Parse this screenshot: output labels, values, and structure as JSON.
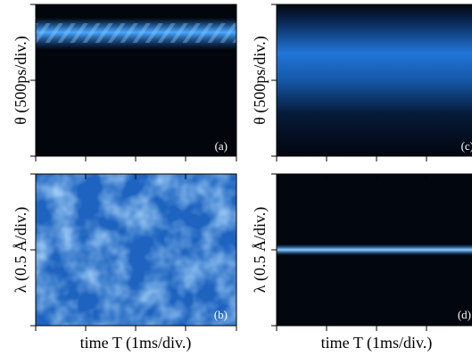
{
  "columns": [
    {
      "x_label": "time T (1ms/div.)",
      "panels": [
        {
          "label": "(a)",
          "y_label": "θ (500ps/div.)"
        },
        {
          "label": "(b)",
          "y_label": "λ (0.5 Å/div.)"
        }
      ]
    },
    {
      "x_label": "time T (1ms/div.)",
      "panels": [
        {
          "label": "(c)",
          "y_label": "θ (500ps/div.)"
        },
        {
          "label": "(d)",
          "y_label": "λ (0.5 Å/div.)"
        }
      ]
    }
  ]
}
